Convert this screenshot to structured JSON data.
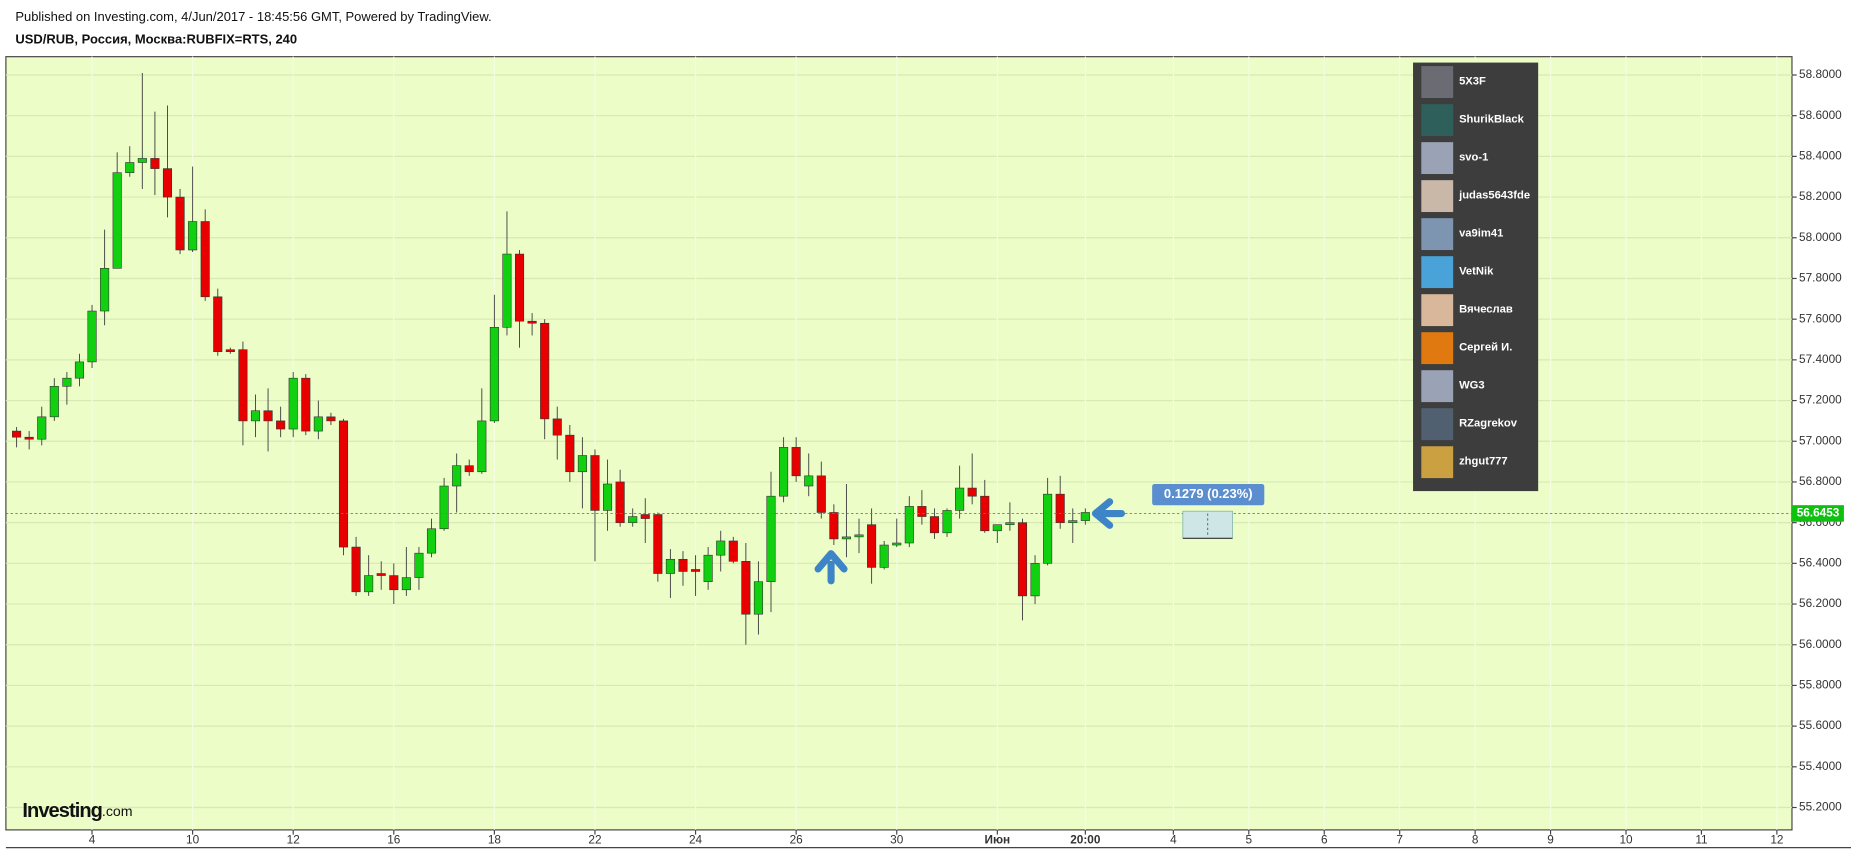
{
  "chart_data": {
    "type": "candlestick",
    "published": "Published on Investing.com, 4/Jun/2017 - 18:45:56 GMT, Powered by TradingView.",
    "title": "USD/RUB, Россия, Москва:RUBFIX=RTS, 240",
    "logo": "Investing",
    "logo_suffix": ".com",
    "annotation": "0.1279 (0.23%)",
    "up_color": "#10d010",
    "down_color": "#e80000",
    "grid": true,
    "last_price": 56.6453,
    "open": [
      57.05,
      57.02,
      57.01,
      57.12,
      57.27,
      57.31,
      57.39,
      57.64,
      57.85,
      58.32,
      58.37,
      58.39,
      58.34,
      58.2,
      57.94,
      58.08,
      57.71,
      57.45,
      57.45,
      57.1,
      57.15,
      57.1,
      57.06,
      57.31,
      57.05,
      57.12,
      57.1,
      56.48,
      56.26,
      56.35,
      56.34,
      56.27,
      56.33,
      56.45,
      56.57,
      56.78,
      56.88,
      56.85,
      57.1,
      57.56,
      57.92,
      57.59,
      57.58,
      57.11,
      57.03,
      56.85,
      56.93,
      56.66,
      56.8,
      56.6,
      56.64,
      56.64,
      56.35,
      56.42,
      56.37,
      56.31,
      56.44,
      56.51,
      56.41,
      56.15,
      56.31,
      56.73,
      56.97,
      56.78,
      56.83,
      56.65,
      56.52,
      56.53,
      56.59,
      56.38,
      56.49,
      56.5,
      56.68,
      56.63,
      56.55,
      56.66,
      56.77,
      56.73,
      56.56,
      56.59,
      56.6,
      56.24,
      56.4,
      56.74,
      56.6,
      56.61
    ],
    "high": [
      57.07,
      57.05,
      57.17,
      57.31,
      57.34,
      57.43,
      57.67,
      58.04,
      58.42,
      58.45,
      58.81,
      58.62,
      58.65,
      58.24,
      58.35,
      58.14,
      57.75,
      57.46,
      57.49,
      57.23,
      57.26,
      57.17,
      57.34,
      57.33,
      57.2,
      57.14,
      57.11,
      56.53,
      56.44,
      56.41,
      56.4,
      56.48,
      56.48,
      56.62,
      56.82,
      56.94,
      56.91,
      57.26,
      57.72,
      58.13,
      57.94,
      57.63,
      57.6,
      57.17,
      57.08,
      57.02,
      56.96,
      56.91,
      56.86,
      56.67,
      56.72,
      56.65,
      56.47,
      56.46,
      56.44,
      56.48,
      56.56,
      56.53,
      56.5,
      56.41,
      56.85,
      57.02,
      57.02,
      56.94,
      56.9,
      56.69,
      56.79,
      56.62,
      56.67,
      56.51,
      56.62,
      56.73,
      56.76,
      56.67,
      56.67,
      56.88,
      56.94,
      56.81,
      56.59,
      56.7,
      56.62,
      56.44,
      56.82,
      56.83,
      56.67,
      56.67
    ],
    "low": [
      56.97,
      56.96,
      56.98,
      57.1,
      57.18,
      57.27,
      57.36,
      57.57,
      57.85,
      58.3,
      58.24,
      58.21,
      58.1,
      57.92,
      57.93,
      57.69,
      57.42,
      57.43,
      56.98,
      57.02,
      56.95,
      57.02,
      57.02,
      57.03,
      57.01,
      57.08,
      56.44,
      56.24,
      56.24,
      56.27,
      56.2,
      56.24,
      56.27,
      56.43,
      56.56,
      56.65,
      56.83,
      56.84,
      57.09,
      57.52,
      57.46,
      57.52,
      57.01,
      56.91,
      56.8,
      56.67,
      56.41,
      56.56,
      56.58,
      56.58,
      56.5,
      56.31,
      56.23,
      56.29,
      56.24,
      56.27,
      56.36,
      56.4,
      56.0,
      56.05,
      56.16,
      56.7,
      56.8,
      56.73,
      56.62,
      56.49,
      56.43,
      56.45,
      56.3,
      56.37,
      56.48,
      56.48,
      56.59,
      56.52,
      56.53,
      56.62,
      56.69,
      56.55,
      56.5,
      56.56,
      56.12,
      56.2,
      56.39,
      56.57,
      56.5,
      56.59
    ],
    "close": [
      57.02,
      57.01,
      57.12,
      57.27,
      57.31,
      57.39,
      57.64,
      57.85,
      58.32,
      58.37,
      58.39,
      58.34,
      58.2,
      57.94,
      58.08,
      57.71,
      57.44,
      57.44,
      57.1,
      57.15,
      57.1,
      57.06,
      57.31,
      57.05,
      57.12,
      57.1,
      56.48,
      56.26,
      56.34,
      56.34,
      56.27,
      56.33,
      56.45,
      56.57,
      56.78,
      56.88,
      56.85,
      57.1,
      57.56,
      57.92,
      57.59,
      57.58,
      57.11,
      57.03,
      56.85,
      56.93,
      56.66,
      56.79,
      56.6,
      56.63,
      56.62,
      56.35,
      56.42,
      56.36,
      56.36,
      56.44,
      56.51,
      56.41,
      56.15,
      56.31,
      56.73,
      56.97,
      56.83,
      56.83,
      56.65,
      56.52,
      56.53,
      56.54,
      56.38,
      56.49,
      56.5,
      56.68,
      56.63,
      56.55,
      56.66,
      56.77,
      56.73,
      56.56,
      56.59,
      56.6,
      56.24,
      56.4,
      56.74,
      56.6,
      56.61,
      56.65
    ],
    "xlim": [
      -0.85,
      141.2
    ],
    "xticks": [
      {
        "value": 6,
        "label": "4"
      },
      {
        "value": 14,
        "label": "10"
      },
      {
        "value": 22,
        "label": "12"
      },
      {
        "value": 30,
        "label": "16"
      },
      {
        "value": 38,
        "label": "18"
      },
      {
        "value": 46,
        "label": "22"
      },
      {
        "value": 54,
        "label": "24"
      },
      {
        "value": 62,
        "label": "26"
      },
      {
        "value": 70,
        "label": "30"
      },
      {
        "value": 78,
        "label": "Июн"
      },
      {
        "value": 85,
        "label": "20:00"
      },
      {
        "value": 92,
        "label": "4"
      },
      {
        "value": 98,
        "label": "5"
      },
      {
        "value": 104,
        "label": "6"
      },
      {
        "value": 110,
        "label": "7"
      },
      {
        "value": 116,
        "label": "8"
      },
      {
        "value": 122,
        "label": "9"
      },
      {
        "value": 128,
        "label": "10"
      },
      {
        "value": 134,
        "label": "11"
      },
      {
        "value": 140,
        "label": "12"
      }
    ],
    "ylim": [
      55.09,
      58.89
    ],
    "yticks": [
      {
        "value": 55.2,
        "label": "55.2000"
      },
      {
        "value": 55.4,
        "label": "55.4000"
      },
      {
        "value": 55.6,
        "label": "55.6000"
      },
      {
        "value": 55.8,
        "label": "55.8000"
      },
      {
        "value": 56.0,
        "label": "56.0000"
      },
      {
        "value": 56.2,
        "label": "56.2000"
      },
      {
        "value": 56.4,
        "label": "56.4000"
      },
      {
        "value": 56.6,
        "label": "56.6000"
      },
      {
        "value": 56.8,
        "label": "56.8000"
      },
      {
        "value": 57.0,
        "label": "57.0000"
      },
      {
        "value": 57.2,
        "label": "57.2000"
      },
      {
        "value": 57.4,
        "label": "57.4000"
      },
      {
        "value": 57.6,
        "label": "57.6000"
      },
      {
        "value": 57.8,
        "label": "57.8000"
      },
      {
        "value": 58.0,
        "label": "58.0000"
      },
      {
        "value": 58.2,
        "label": "58.2000"
      },
      {
        "value": 58.4,
        "label": "58.4000"
      },
      {
        "value": 58.6,
        "label": "58.6000"
      },
      {
        "value": 58.8,
        "label": "58.8000"
      }
    ]
  },
  "panel": {
    "users": [
      "5X3F",
      "ShurikBlack",
      "svo-1",
      "judas5643fde",
      "va9im41",
      "VetNik",
      "Вячеслав",
      "Сергей И.",
      "WG3",
      "RZagrekov",
      "zhgut777"
    ]
  }
}
